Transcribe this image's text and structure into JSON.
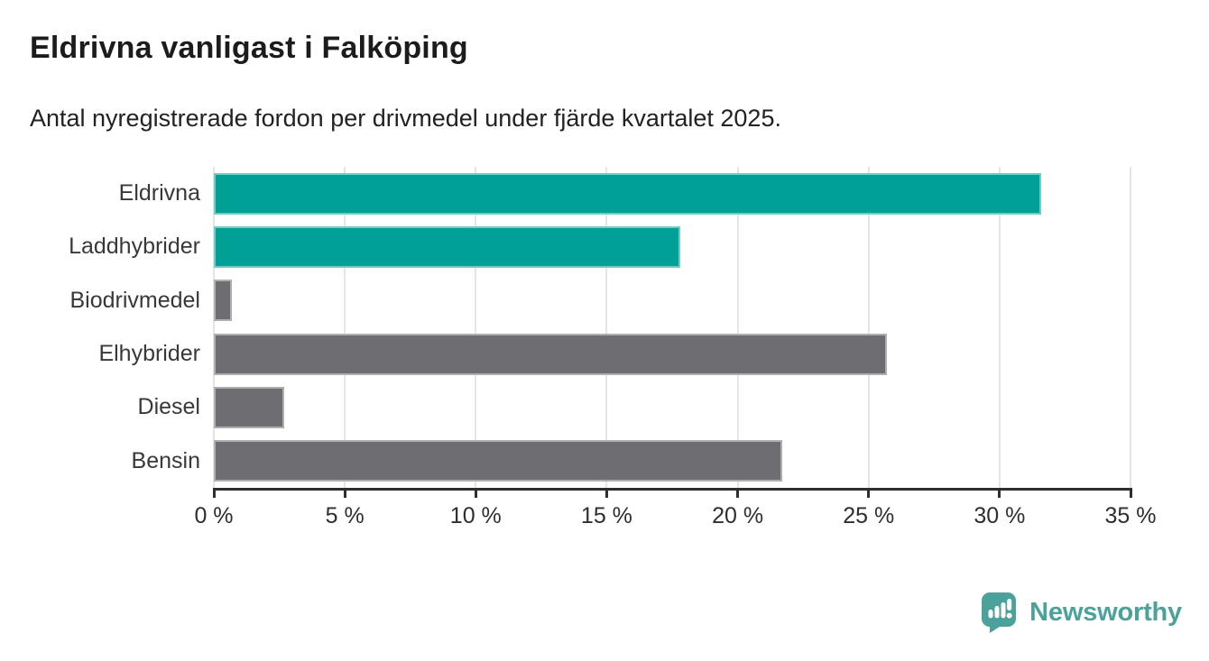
{
  "header": {
    "title": "Eldrivna vanligast i Falköping",
    "subtitle": "Antal nyregistrerade fordon per drivmedel under fjärde kvartalet 2025."
  },
  "chart_data": {
    "type": "bar",
    "orientation": "horizontal",
    "title": "Eldrivna vanligast i Falköping",
    "subtitle": "Antal nyregistrerade fordon per drivmedel under fjärde kvartalet 2025.",
    "categories": [
      "Eldrivna",
      "Laddhybrider",
      "Biodrivmedel",
      "Elhybrider",
      "Diesel",
      "Bensin"
    ],
    "values": [
      31.6,
      17.8,
      0.7,
      25.7,
      2.7,
      21.7
    ],
    "unit": "%",
    "xlim": [
      0,
      35
    ],
    "x_ticks": [
      0,
      5,
      10,
      15,
      20,
      25,
      30,
      35
    ],
    "x_tick_labels": [
      "0 %",
      "5 %",
      "10 %",
      "15 %",
      "20 %",
      "25 %",
      "30 %",
      "35 %"
    ],
    "bar_colors": [
      "#00a096",
      "#00a096",
      "#6d6d72",
      "#6d6d72",
      "#6d6d72",
      "#6d6d72"
    ],
    "highlight_color": "#00a096",
    "default_color": "#6d6d72",
    "grid": true,
    "gridline_color": "#e5e5e5",
    "legend": "none"
  },
  "branding": {
    "logo_text": "Newsworthy",
    "logo_color": "#4aa29a",
    "logo_icon": "speech-bubble-bar-chart-icon"
  }
}
